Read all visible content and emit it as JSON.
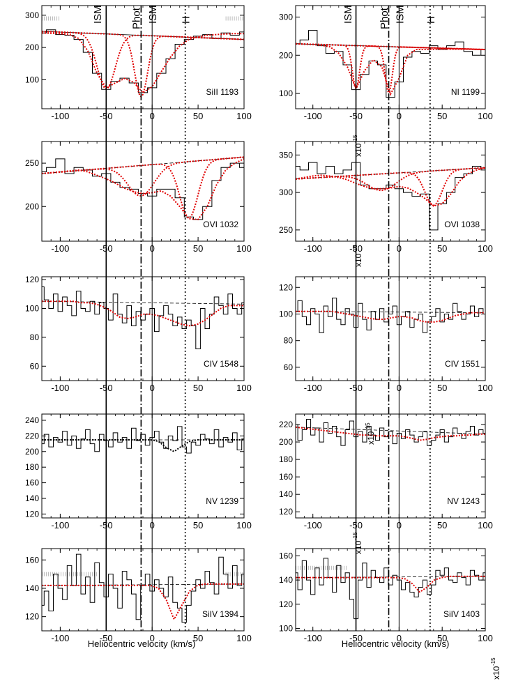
{
  "figure": {
    "xlabel": "Heliocentric velocity (km/s)",
    "scale_note": "x10",
    "scale_exp": "-15"
  },
  "marker_labels": [
    "ISM",
    "Phot",
    "ISM",
    "H"
  ],
  "colors": {
    "data": "#000000",
    "fit": "#e00000",
    "continuum": "#000000",
    "grid_dotted": "#bdbdbd"
  },
  "chart_data": [
    {
      "type": "line",
      "label": "SiII 1193",
      "xlim": [
        -120,
        100
      ],
      "ylim": [
        10,
        330
      ],
      "xticks": [
        -100,
        -50,
        0,
        50,
        100
      ],
      "yticks": [
        100,
        200,
        300
      ],
      "markers": [
        -50,
        -12,
        0,
        36
      ],
      "data_x": [
        -120,
        -110,
        -100,
        -90,
        -80,
        -70,
        -60,
        -50,
        -40,
        -30,
        -20,
        -10,
        0,
        10,
        20,
        30,
        40,
        50,
        60,
        70,
        80,
        90,
        100
      ],
      "data_y": [
        245,
        255,
        240,
        238,
        225,
        185,
        120,
        70,
        95,
        105,
        90,
        60,
        75,
        120,
        165,
        210,
        225,
        235,
        240,
        228,
        245,
        238,
        248
      ],
      "continuum_y": [
        250,
        225
      ],
      "fit_y": [
        245,
        244,
        243,
        240,
        228,
        190,
        120,
        75,
        90,
        104,
        92,
        60,
        78,
        125,
        170,
        205,
        225,
        233,
        238,
        240,
        242,
        243,
        243
      ],
      "components": [
        {
          "center": -50,
          "depth": 170,
          "width": 14
        },
        {
          "center": -12,
          "depth": 190,
          "width": 10
        }
      ],
      "shade_ranges": [
        [
          -120,
          -100
        ],
        [
          80,
          100
        ]
      ],
      "shade_level": 290
    },
    {
      "type": "line",
      "label": "NI 1199",
      "xlim": [
        -120,
        100
      ],
      "ylim": [
        60,
        330
      ],
      "xticks": [
        -100,
        -50,
        0,
        50,
        100
      ],
      "yticks": [
        100,
        200,
        300
      ],
      "markers": [
        -50,
        -12,
        0,
        36
      ],
      "data_x": [
        -120,
        -110,
        -100,
        -90,
        -80,
        -70,
        -60,
        -50,
        -40,
        -30,
        -20,
        -10,
        0,
        10,
        20,
        30,
        40,
        50,
        60,
        70,
        80,
        90,
        100
      ],
      "data_y": [
        230,
        240,
        265,
        225,
        205,
        210,
        175,
        110,
        150,
        185,
        175,
        90,
        130,
        195,
        210,
        205,
        225,
        215,
        225,
        235,
        210,
        200,
        215
      ],
      "continuum_y": [
        230,
        215
      ],
      "fit_y": [
        230,
        229,
        228,
        226,
        222,
        205,
        170,
        112,
        160,
        188,
        170,
        98,
        140,
        200,
        215,
        215,
        215,
        216,
        216,
        216,
        216,
        215,
        215
      ],
      "components": [
        {
          "center": -50,
          "depth": 110,
          "width": 6
        },
        {
          "center": -12,
          "depth": 120,
          "width": 6
        }
      ],
      "shade_ranges": [],
      "shade_level": 0
    },
    {
      "type": "line",
      "label": "OVI 1032",
      "xlim": [
        -120,
        100
      ],
      "ylim": [
        160,
        275
      ],
      "xticks": [
        -100,
        -50,
        0,
        50,
        100
      ],
      "yticks": [
        200,
        250
      ],
      "markers": [
        -50,
        -12,
        0,
        36
      ],
      "data_x": [
        -120,
        -110,
        -100,
        -90,
        -80,
        -70,
        -60,
        -50,
        -40,
        -30,
        -20,
        -10,
        0,
        10,
        20,
        30,
        40,
        50,
        60,
        70,
        80,
        90,
        100
      ],
      "data_y": [
        240,
        245,
        255,
        238,
        245,
        242,
        235,
        238,
        228,
        222,
        220,
        215,
        212,
        220,
        220,
        210,
        188,
        185,
        200,
        230,
        245,
        250,
        245
      ],
      "continuum_y": [
        238,
        257
      ],
      "fit_y": [
        238,
        239,
        240,
        241,
        242,
        240,
        236,
        232,
        227,
        221,
        217,
        215,
        216,
        218,
        212,
        200,
        186,
        185,
        200,
        225,
        242,
        250,
        255
      ],
      "components": [
        {
          "center": -12,
          "depth": 35,
          "width": 20
        },
        {
          "center": 40,
          "depth": 65,
          "width": 14
        }
      ],
      "shade_ranges": [],
      "shade_level": 0
    },
    {
      "type": "line",
      "label": "OVI 1038",
      "xlim": [
        -120,
        100
      ],
      "ylim": [
        235,
        368
      ],
      "xticks": [
        -100,
        -50,
        0,
        50,
        100
      ],
      "yticks": [
        250,
        300,
        350
      ],
      "markers": [
        -50,
        -12,
        0,
        36
      ],
      "data_x": [
        -120,
        -110,
        -100,
        -90,
        -80,
        -70,
        -60,
        -50,
        -40,
        -30,
        -20,
        -10,
        0,
        10,
        20,
        30,
        40,
        50,
        60,
        70,
        80,
        90,
        100
      ],
      "data_y": [
        335,
        330,
        340,
        325,
        335,
        325,
        330,
        340,
        310,
        305,
        305,
        310,
        305,
        300,
        295,
        298,
        250,
        285,
        300,
        320,
        325,
        335,
        330
      ],
      "continuum_y": [
        318,
        333
      ],
      "fit_y": [
        318,
        320,
        322,
        323,
        322,
        320,
        317,
        312,
        308,
        305,
        305,
        306,
        308,
        306,
        300,
        292,
        282,
        285,
        298,
        315,
        325,
        330,
        333
      ],
      "components": [
        {
          "center": -20,
          "depth": 22,
          "width": 24
        },
        {
          "center": 40,
          "depth": 46,
          "width": 14
        }
      ],
      "shade_ranges": [],
      "shade_level": 0
    },
    {
      "type": "line",
      "label": "CIV 1548",
      "xlim": [
        -120,
        100
      ],
      "ylim": [
        50,
        122
      ],
      "xticks": [
        -100,
        -50,
        0,
        50,
        100
      ],
      "yticks": [
        60,
        80,
        100,
        120
      ],
      "markers": [
        -50,
        -12,
        0,
        36
      ],
      "data_x": [
        -120,
        -115,
        -110,
        -105,
        -100,
        -95,
        -90,
        -85,
        -80,
        -75,
        -70,
        -65,
        -60,
        -55,
        -50,
        -45,
        -40,
        -35,
        -30,
        -25,
        -20,
        -15,
        -10,
        -5,
        0,
        5,
        10,
        15,
        20,
        25,
        30,
        35,
        40,
        45,
        50,
        55,
        60,
        65,
        70,
        75,
        80,
        85,
        90,
        95,
        100
      ],
      "data_y": [
        115,
        106,
        100,
        110,
        98,
        108,
        102,
        95,
        112,
        100,
        98,
        105,
        96,
        104,
        100,
        92,
        110,
        96,
        90,
        102,
        88,
        98,
        92,
        96,
        100,
        84,
        95,
        102,
        96,
        88,
        94,
        86,
        92,
        88,
        72,
        100,
        86,
        96,
        108,
        102,
        96,
        110,
        100,
        96,
        104
      ],
      "continuum_y": [
        105,
        103
      ],
      "fit_y": [
        105,
        105,
        105,
        105,
        105,
        104,
        104,
        103,
        101,
        98,
        94,
        93,
        94,
        96,
        96,
        95,
        93,
        91,
        89,
        88,
        89,
        92,
        96,
        100,
        102,
        102,
        102
      ],
      "components": [],
      "shade_ranges": [],
      "shade_level": 0
    },
    {
      "type": "line",
      "label": "CIV 1551",
      "xlim": [
        -120,
        100
      ],
      "ylim": [
        50,
        128
      ],
      "xticks": [
        -100,
        -50,
        0,
        50,
        100
      ],
      "yticks": [
        60,
        80,
        100,
        120
      ],
      "markers": [
        -50,
        -12,
        0,
        36
      ],
      "data_x": [
        -120,
        -115,
        -110,
        -105,
        -100,
        -95,
        -90,
        -85,
        -80,
        -75,
        -70,
        -65,
        -60,
        -55,
        -50,
        -45,
        -40,
        -35,
        -30,
        -25,
        -20,
        -15,
        -10,
        -5,
        0,
        5,
        10,
        15,
        20,
        25,
        30,
        35,
        40,
        45,
        50,
        55,
        60,
        65,
        70,
        75,
        80,
        85,
        90,
        95,
        100
      ],
      "data_y": [
        102,
        110,
        98,
        92,
        104,
        100,
        86,
        106,
        98,
        112,
        96,
        92,
        104,
        100,
        90,
        108,
        96,
        88,
        102,
        96,
        104,
        94,
        100,
        106,
        92,
        98,
        102,
        90,
        96,
        100,
        86,
        94,
        98,
        104,
        94,
        100,
        96,
        108,
        102,
        96,
        100,
        106,
        98,
        104,
        100
      ],
      "continuum_y": [
        102,
        101
      ],
      "fit_y": [
        102,
        102,
        102,
        102,
        102,
        102,
        101,
        100,
        99,
        98,
        97,
        96,
        96,
        97,
        98,
        98,
        97,
        95,
        94,
        94,
        95,
        97,
        99,
        100,
        101,
        101,
        101
      ],
      "components": [],
      "shade_ranges": [],
      "shade_level": 0
    },
    {
      "type": "line",
      "label": "NV 1239",
      "xlim": [
        -120,
        100
      ],
      "ylim": [
        115,
        248
      ],
      "xticks": [
        -100,
        -50,
        0,
        50,
        100
      ],
      "yticks": [
        120,
        140,
        160,
        180,
        200,
        220,
        240
      ],
      "markers": [
        -50,
        -12,
        0,
        36
      ],
      "data_x": [
        -120,
        -115,
        -110,
        -105,
        -100,
        -95,
        -90,
        -85,
        -80,
        -75,
        -70,
        -65,
        -60,
        -55,
        -50,
        -45,
        -40,
        -35,
        -30,
        -25,
        -20,
        -15,
        -10,
        -5,
        0,
        5,
        10,
        15,
        20,
        25,
        30,
        35,
        40,
        45,
        50,
        55,
        60,
        65,
        70,
        75,
        80,
        85,
        90,
        95,
        100
      ],
      "data_y": [
        210,
        222,
        206,
        218,
        212,
        226,
        208,
        220,
        204,
        216,
        228,
        210,
        200,
        222,
        214,
        206,
        224,
        212,
        218,
        204,
        230,
        214,
        222,
        208,
        218,
        226,
        212,
        204,
        220,
        214,
        232,
        206,
        198,
        212,
        208,
        222,
        216,
        210,
        228,
        206,
        218,
        212,
        224,
        202,
        216
      ],
      "continuum_y": [
        215,
        215
      ],
      "fit_y": [
        215,
        215,
        215,
        215,
        215,
        215,
        215,
        215,
        215,
        215,
        215,
        215,
        215,
        215,
        215,
        213,
        205,
        200,
        207,
        213,
        215,
        215,
        215,
        215,
        215,
        215,
        215
      ],
      "components": [],
      "shade_ranges": [],
      "shade_level": 0,
      "fit_color": "#000000"
    },
    {
      "type": "line",
      "label": "NV 1243",
      "xlim": [
        -120,
        100
      ],
      "ylim": [
        113,
        232
      ],
      "xticks": [
        -100,
        -50,
        0,
        50,
        100
      ],
      "yticks": [
        120,
        140,
        160,
        180,
        200,
        220
      ],
      "markers": [
        -50,
        -12,
        0,
        36
      ],
      "data_x": [
        -120,
        -115,
        -110,
        -105,
        -100,
        -95,
        -90,
        -85,
        -80,
        -75,
        -70,
        -65,
        -60,
        -55,
        -50,
        -45,
        -40,
        -35,
        -30,
        -25,
        -20,
        -15,
        -10,
        -5,
        0,
        5,
        10,
        15,
        20,
        25,
        30,
        35,
        40,
        45,
        50,
        55,
        60,
        65,
        70,
        75,
        80,
        85,
        90,
        95,
        100
      ],
      "data_y": [
        220,
        202,
        214,
        226,
        208,
        216,
        200,
        222,
        210,
        218,
        206,
        196,
        214,
        224,
        206,
        212,
        200,
        218,
        208,
        202,
        216,
        206,
        212,
        198,
        210,
        204,
        214,
        208,
        200,
        206,
        212,
        196,
        202,
        208,
        214,
        200,
        206,
        216,
        210,
        204,
        212,
        218,
        208,
        214,
        210
      ],
      "continuum_y": [
        217,
        209
      ],
      "fit_y": [
        217,
        216,
        215,
        214,
        213,
        212,
        211,
        210,
        209,
        208,
        208,
        207,
        207,
        207,
        207,
        206,
        204,
        202,
        203,
        205,
        206,
        207,
        207,
        208,
        208,
        209,
        209
      ],
      "components": [],
      "shade_ranges": [],
      "shade_level": 0
    },
    {
      "type": "line",
      "label": "SiIV 1394",
      "xlim": [
        -120,
        100
      ],
      "ylim": [
        110,
        168
      ],
      "xticks": [
        -100,
        -50,
        0,
        50,
        100
      ],
      "yticks": [
        120,
        140,
        160
      ],
      "markers": [
        -50,
        -12,
        0,
        36
      ],
      "data_x": [
        -120,
        -115,
        -110,
        -105,
        -100,
        -95,
        -90,
        -85,
        -80,
        -75,
        -70,
        -65,
        -60,
        -55,
        -50,
        -45,
        -40,
        -35,
        -30,
        -25,
        -20,
        -15,
        -10,
        -5,
        0,
        5,
        10,
        15,
        20,
        25,
        30,
        35,
        40,
        45,
        50,
        55,
        60,
        65,
        70,
        75,
        80,
        85,
        90,
        95,
        100
      ],
      "data_y": [
        128,
        138,
        124,
        150,
        140,
        132,
        156,
        142,
        164,
        136,
        148,
        130,
        158,
        144,
        134,
        150,
        140,
        126,
        152,
        146,
        136,
        118,
        142,
        150,
        138,
        146,
        140,
        134,
        148,
        130,
        126,
        116,
        128,
        138,
        146,
        140,
        152,
        144,
        136,
        162,
        150,
        140,
        156,
        142,
        150
      ],
      "continuum_y": [
        142,
        143
      ],
      "fit_y": [
        142,
        142,
        142,
        142,
        142,
        142,
        142,
        142,
        142,
        142,
        142,
        142,
        142,
        142,
        142,
        140,
        132,
        118,
        128,
        138,
        142,
        143,
        143,
        143,
        143,
        143,
        143
      ],
      "components": [],
      "shade_ranges": [
        [
          -120,
          -60
        ],
        [
          80,
          100
        ]
      ],
      "shade_level": 150
    },
    {
      "type": "line",
      "label": "SiIV 1403",
      "xlim": [
        -120,
        100
      ],
      "ylim": [
        98,
        166
      ],
      "xticks": [
        -100,
        -50,
        0,
        50,
        100
      ],
      "yticks": [
        100,
        120,
        140,
        160
      ],
      "markers": [
        -50,
        -12,
        0,
        36
      ],
      "data_x": [
        -120,
        -115,
        -110,
        -105,
        -100,
        -95,
        -90,
        -85,
        -80,
        -75,
        -70,
        -65,
        -60,
        -55,
        -50,
        -45,
        -40,
        -35,
        -30,
        -25,
        -20,
        -15,
        -10,
        -5,
        0,
        5,
        10,
        15,
        20,
        25,
        30,
        35,
        40,
        45,
        50,
        55,
        60,
        65,
        70,
        75,
        80,
        85,
        90,
        95,
        100
      ],
      "data_y": [
        146,
        132,
        156,
        140,
        128,
        150,
        136,
        158,
        142,
        130,
        152,
        138,
        146,
        124,
        108,
        140,
        154,
        134,
        148,
        142,
        138,
        150,
        136,
        144,
        140,
        132,
        138,
        130,
        126,
        134,
        140,
        128,
        136,
        148,
        144,
        150,
        140,
        138,
        146,
        142,
        136,
        148,
        144,
        140,
        146
      ],
      "continuum_y": [
        142,
        143
      ],
      "fit_y": [
        142,
        142,
        142,
        142,
        142,
        142,
        142,
        142,
        142,
        142,
        142,
        142,
        142,
        142,
        142,
        141,
        137,
        130,
        134,
        140,
        142,
        143,
        143,
        143,
        143,
        143,
        143
      ],
      "components": [],
      "shade_ranges": [
        [
          -120,
          -60
        ]
      ],
      "shade_level": 150
    }
  ]
}
